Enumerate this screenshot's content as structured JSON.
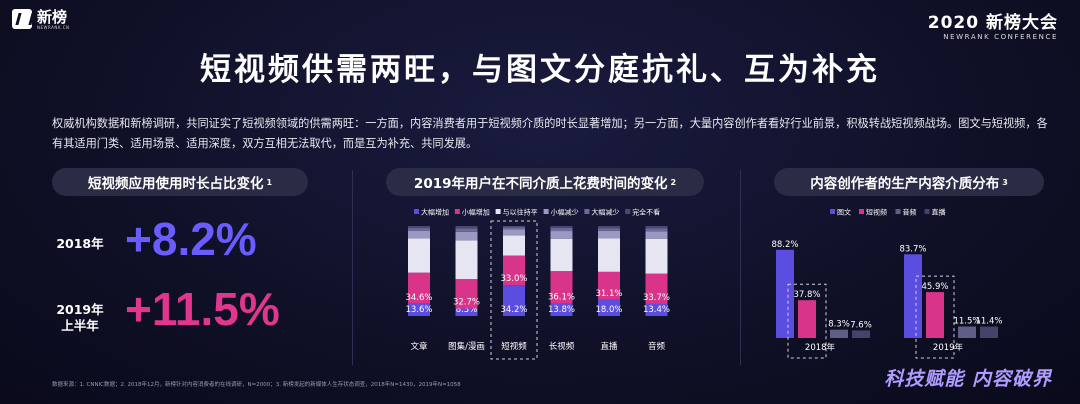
{
  "header": {
    "logo_text": "新榜",
    "logo_sub": "NEWRANK.CN",
    "conf_title": "2020 新榜大会",
    "conf_sub": "NEWRANK CONFERENCE"
  },
  "title": "短视频供需两旺，与图文分庭抗礼、互为补充",
  "intro": "权威机构数据和新榜调研，共同证实了短视频领域的供需两旺：一方面，内容消费者用于短视频介质的时长显著增加；另一方面，大量内容创作者看好行业前景，积极转战短视频战场。图文与短视频，各有其适用门类、适用场景、适用深度，双方互相无法取代，而是互为补充、共同发展。",
  "panel1": {
    "title": "短视频应用使用时长占比变化",
    "sup": "1",
    "rows": [
      {
        "year": "2018年",
        "value": "+8.2%"
      },
      {
        "year_line1": "2019年",
        "year_line2": "上半年",
        "value": "+11.5%"
      }
    ]
  },
  "panel2": {
    "title": "2019年用户在不同介质上花费时间的变化",
    "sup": "2"
  },
  "panel3": {
    "title": "内容创作者的生产内容介质分布",
    "sup": "3"
  },
  "chart_data": [
    {
      "type": "bar",
      "stacked": true,
      "title": "2019年用户在不同介质上花费时间的变化",
      "categories": [
        "文章",
        "图集/漫画",
        "短视频",
        "长视频",
        "直播",
        "音频"
      ],
      "highlight_category": "短视频",
      "legend_placement": "top",
      "series": [
        {
          "name": "大幅增加",
          "color": "#5a4de0",
          "values": [
            13.6,
            8.3,
            34.2,
            13.8,
            18.0,
            13.4
          ]
        },
        {
          "name": "小幅增加",
          "color": "#d8358a",
          "values": [
            34.6,
            32.7,
            33.0,
            36.1,
            31.1,
            33.7
          ]
        },
        {
          "name": "与以往持平",
          "color": "#e6e5f2",
          "values": [
            38.0,
            43.0,
            22.5,
            36.0,
            37.0,
            38.5
          ]
        },
        {
          "name": "小幅减少",
          "color": "#9b98c2",
          "values": [
            8.5,
            9.5,
            6.5,
            8.5,
            8.5,
            8.5
          ]
        },
        {
          "name": "大幅减少",
          "color": "#6c6a99",
          "values": [
            3.0,
            4.0,
            2.5,
            3.5,
            3.0,
            3.5
          ]
        },
        {
          "name": "完全不看",
          "color": "#4a4970",
          "values": [
            2.3,
            2.5,
            1.3,
            2.1,
            2.4,
            2.4
          ]
        }
      ],
      "labels": {
        "大幅增加": [
          "13.6%",
          "8.3%",
          "34.2%",
          "13.8%",
          "18.0%",
          "13.4%"
        ],
        "小幅增加": [
          "34.6%",
          "32.7%",
          "33.0%",
          "36.1%",
          "31.1%",
          "33.7%"
        ]
      }
    },
    {
      "type": "bar",
      "title": "内容创作者的生产内容介质分布",
      "categories": [
        "2018年",
        "2019年"
      ],
      "legend_placement": "top",
      "series": [
        {
          "name": "图文",
          "color": "#5a4de0",
          "values": [
            88.2,
            83.7
          ],
          "labels": [
            "88.2%",
            "83.7%"
          ]
        },
        {
          "name": "短视频",
          "color": "#d8358a",
          "values": [
            37.8,
            45.9
          ],
          "labels": [
            "37.8%",
            "45.9%"
          ]
        },
        {
          "name": "音频",
          "color": "#5f5e85",
          "values": [
            8.3,
            11.5
          ],
          "labels": [
            "8.3%",
            "11.5%"
          ]
        },
        {
          "name": "直播",
          "color": "#44446a",
          "values": [
            7.6,
            11.4
          ],
          "labels": [
            "7.6%",
            "11.4%"
          ]
        }
      ],
      "highlight_series": "短视频"
    }
  ],
  "footer": {
    "source": "数据来源：1. CNNIC数据；2. 2018年12月，新榜针对内容消费者的在线调研，N=2000；3. 新榜发起的新媒体人生存状态调查，2018年N=1430，2019年N=1058",
    "slogan": "科技赋能 内容破界"
  }
}
